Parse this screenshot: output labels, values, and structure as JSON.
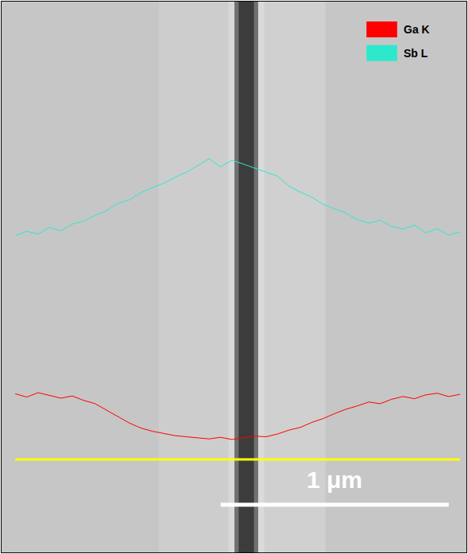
{
  "chart_data": {
    "type": "line",
    "x": [
      0.06,
      0.11,
      0.16,
      0.21,
      0.26,
      0.31,
      0.36,
      0.41,
      0.46,
      0.51,
      0.56,
      0.61,
      0.66,
      0.71,
      0.76,
      0.81,
      0.86,
      0.91,
      0.96,
      1.01,
      1.06,
      1.11,
      1.16,
      1.21,
      1.26,
      1.31,
      1.36,
      1.41,
      1.46,
      1.51,
      1.56,
      1.61,
      1.66,
      1.71,
      1.76,
      1.81,
      1.86,
      1.91,
      1.96,
      2.01
    ],
    "series": [
      {
        "name": "Ga K",
        "color": "#ff0000",
        "values": [
          28.8,
          28.2,
          29.0,
          28.5,
          28.0,
          28.4,
          27.6,
          27.0,
          25.8,
          24.6,
          23.5,
          22.6,
          22.0,
          21.6,
          21.2,
          21.0,
          20.8,
          20.6,
          20.9,
          20.5,
          20.8,
          21.1,
          21.0,
          21.5,
          22.2,
          22.7,
          23.6,
          24.3,
          25.2,
          26.0,
          26.6,
          27.3,
          27.0,
          27.8,
          28.3,
          27.9,
          28.6,
          28.9,
          28.3,
          28.7
        ]
      },
      {
        "name": "Sb L",
        "color": "#2ee8cc",
        "values": [
          57.5,
          58.3,
          57.8,
          59.0,
          58.4,
          59.6,
          60.1,
          61.2,
          62.0,
          63.4,
          64.0,
          65.3,
          66.2,
          67.0,
          68.1,
          69.0,
          70.2,
          71.5,
          70.0,
          71.2,
          70.5,
          69.8,
          69.0,
          68.3,
          66.5,
          65.4,
          64.5,
          63.2,
          62.4,
          61.6,
          60.4,
          59.8,
          60.3,
          59.2,
          58.7,
          59.4,
          58.0,
          58.8,
          57.6,
          58.2
        ]
      }
    ],
    "xlim": [
      0,
      2.038
    ],
    "ylim": [
      0,
      100
    ],
    "tick_labels": false,
    "grid": false,
    "legend": "top right",
    "scale_bar": {
      "length": 1,
      "label": "1 μm"
    }
  }
}
